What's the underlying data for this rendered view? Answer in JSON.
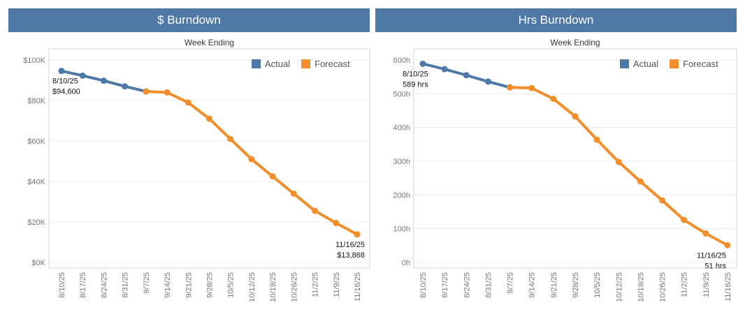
{
  "colors": {
    "header": "#4e79a7",
    "actual": "#4e79a7",
    "forecast": "#f28e2b"
  },
  "chart_data": [
    {
      "type": "line",
      "title": "$ Burndown",
      "xlabel": "Week Ending",
      "ylabel": "",
      "categories": [
        "8/10/25",
        "8/17/25",
        "8/24/25",
        "8/31/25",
        "9/7/25",
        "9/14/25",
        "9/21/25",
        "9/28/25",
        "10/5/25",
        "10/12/25",
        "10/19/25",
        "10/26/25",
        "11/2/25",
        "11/9/25",
        "11/16/25"
      ],
      "series": [
        {
          "name": "Actual",
          "values": [
            94600,
            92300,
            89800,
            87000,
            84500,
            null,
            null,
            null,
            null,
            null,
            null,
            null,
            null,
            null,
            null
          ]
        },
        {
          "name": "Forecast",
          "values": [
            null,
            null,
            null,
            null,
            84500,
            84000,
            79000,
            71000,
            61000,
            51000,
            42500,
            34000,
            25500,
            19500,
            13868
          ]
        }
      ],
      "ylim": [
        0,
        100000
      ],
      "yticks": [
        0,
        20000,
        40000,
        60000,
        80000,
        100000
      ],
      "ytick_labels": [
        "$0K",
        "$20K",
        "$40K",
        "$60K",
        "$80K",
        "$100K"
      ],
      "legend": "top-right",
      "grid": true,
      "annotations": [
        {
          "date": "8/10/25",
          "value": "$94,600"
        },
        {
          "date": "11/16/25",
          "value": "$13,868"
        }
      ]
    },
    {
      "type": "line",
      "title": "Hrs Burndown",
      "xlabel": "Week Ending",
      "ylabel": "",
      "categories": [
        "8/10/25",
        "8/17/25",
        "8/24/25",
        "8/31/25",
        "9/7/25",
        "9/14/25",
        "9/21/25",
        "9/28/25",
        "10/5/25",
        "10/12/25",
        "10/19/25",
        "10/26/25",
        "11/2/25",
        "11/9/25",
        "11/16/25"
      ],
      "series": [
        {
          "name": "Actual",
          "values": [
            589,
            573,
            555,
            536,
            519,
            null,
            null,
            null,
            null,
            null,
            null,
            null,
            null,
            null,
            null
          ]
        },
        {
          "name": "Forecast",
          "values": [
            null,
            null,
            null,
            null,
            519,
            517,
            485,
            433,
            364,
            298,
            240,
            184,
            126,
            86,
            51
          ]
        }
      ],
      "ylim": [
        0,
        600
      ],
      "yticks": [
        0,
        100,
        200,
        300,
        400,
        500,
        600
      ],
      "ytick_labels": [
        "0h",
        "100h",
        "200h",
        "300h",
        "400h",
        "500h",
        "600h"
      ],
      "legend": "top-right",
      "grid": true,
      "annotations": [
        {
          "date": "8/10/25",
          "value": "589 hrs"
        },
        {
          "date": "11/16/25",
          "value": "51 hrs"
        }
      ]
    }
  ]
}
